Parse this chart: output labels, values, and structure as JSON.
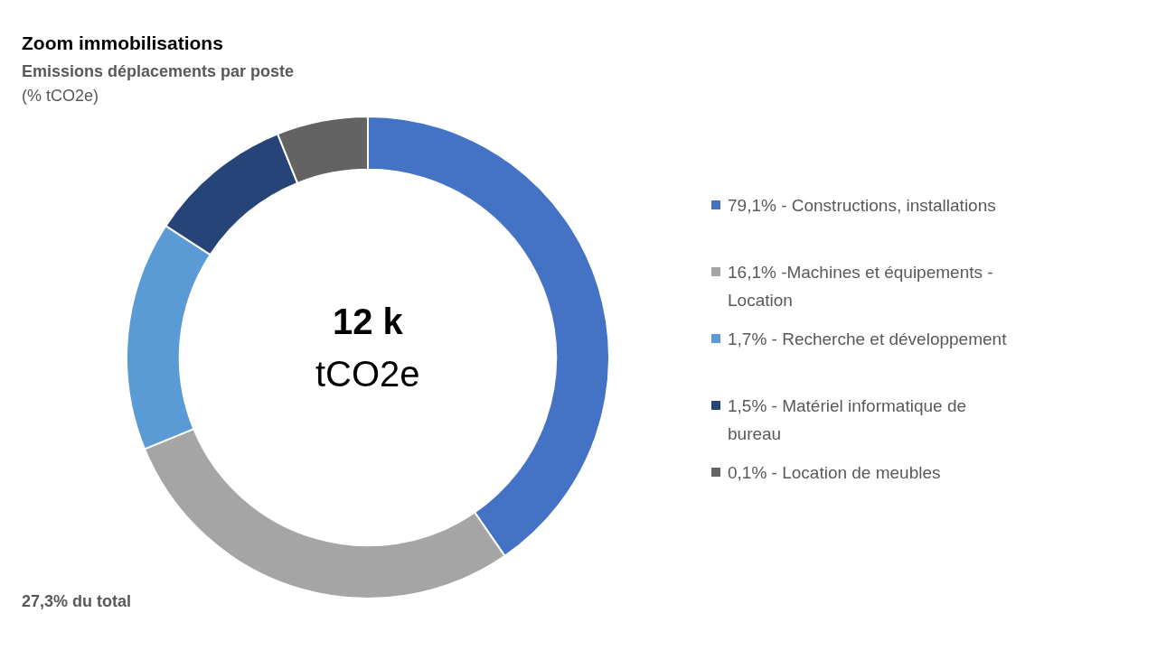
{
  "chart_data": {
    "type": "donut",
    "title": "Zoom immobilisations",
    "subtitle": "Emissions déplacements par poste",
    "categories": [
      "79,1% - Constructions, installations",
      "16,1% -Machines et équipements - Location",
      "1,7% - Recherche et développement",
      "1,5% - Matériel informatique de bureau",
      "0,1% - Location de meubles"
    ],
    "values": [
      40.4,
      28.4,
      15.4,
      9.7,
      6.1
    ],
    "colors": [
      "#4472c4",
      "#a5a5a5",
      "#5b9bd5",
      "#264478",
      "#636363"
    ],
    "legend": "right",
    "annotations": [
      "(% tCO2e)",
      "12 k",
      "tCO2e",
      "27,3% du total"
    ]
  }
}
